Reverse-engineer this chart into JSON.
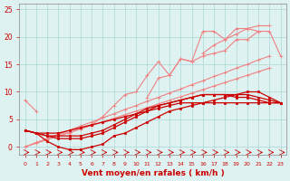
{
  "title": "",
  "xlabel": "Vent moyen/en rafales ( km/h )",
  "x": [
    0,
    1,
    2,
    3,
    4,
    5,
    6,
    7,
    8,
    9,
    10,
    11,
    12,
    13,
    14,
    15,
    16,
    17,
    18,
    19,
    20,
    21,
    22,
    23
  ],
  "line1_light": [
    8.5,
    6.5,
    null,
    null,
    null,
    null,
    null,
    null,
    null,
    null,
    null,
    null,
    null,
    null,
    null,
    null,
    null,
    null,
    null,
    null,
    null,
    null,
    null,
    null
  ],
  "line2_light": [
    null,
    null,
    null,
    null,
    null,
    null,
    null,
    null,
    null,
    null,
    null,
    9.0,
    12.5,
    13.0,
    16.0,
    15.5,
    16.5,
    17.0,
    17.5,
    19.5,
    19.5,
    21.0,
    21.0,
    16.5
  ],
  "line3_light": [
    null,
    null,
    null,
    null,
    null,
    null,
    null,
    null,
    null,
    null,
    null,
    null,
    null,
    null,
    null,
    null,
    21.0,
    21.0,
    null,
    null,
    null,
    null,
    null,
    null
  ],
  "line_up1": [
    null,
    null,
    null,
    null,
    null,
    null,
    null,
    null,
    null,
    null,
    10.0,
    13.0,
    null,
    null,
    null,
    null,
    null,
    null,
    null,
    null,
    null,
    null,
    null,
    null
  ],
  "big_light1": [
    null,
    null,
    null,
    2.5,
    2.5,
    3.5,
    4.0,
    5.5,
    7.5,
    9.5,
    10.0,
    13.0,
    15.5,
    13.0,
    16.0,
    15.5,
    21.0,
    21.0,
    19.5,
    21.5,
    21.5,
    21.0,
    null,
    null
  ],
  "big_light2": [
    null,
    null,
    2.5,
    2.0,
    2.0,
    2.5,
    3.5,
    5.0,
    7.0,
    9.0,
    10.0,
    null,
    null,
    null,
    null,
    null,
    null,
    null,
    null,
    null,
    null,
    null,
    null,
    null
  ],
  "big_light3": [
    null,
    null,
    null,
    null,
    null,
    null,
    null,
    null,
    null,
    null,
    null,
    null,
    null,
    null,
    null,
    null,
    17.0,
    18.5,
    19.5,
    20.5,
    21.5,
    22.0,
    22.0,
    null
  ],
  "line_straight1": [
    0.0,
    0.8,
    1.5,
    2.3,
    3.0,
    3.8,
    4.5,
    5.3,
    6.0,
    6.8,
    7.5,
    8.3,
    9.0,
    9.8,
    10.5,
    11.3,
    12.0,
    12.8,
    13.5,
    14.3,
    15.0,
    15.8,
    16.5,
    null
  ],
  "line_straight2": [
    0.0,
    0.65,
    1.3,
    2.0,
    2.6,
    3.25,
    3.9,
    4.55,
    5.2,
    5.85,
    6.5,
    7.15,
    7.8,
    8.45,
    9.1,
    9.75,
    10.4,
    11.05,
    11.7,
    12.35,
    13.0,
    13.65,
    14.3,
    null
  ],
  "dark_line1": [
    3.0,
    2.5,
    1.0,
    0.0,
    -0.5,
    -0.5,
    0.0,
    0.5,
    2.0,
    2.5,
    3.5,
    4.5,
    5.5,
    6.5,
    7.0,
    7.5,
    8.0,
    8.5,
    9.0,
    9.5,
    10.0,
    10.0,
    9.0,
    8.0
  ],
  "dark_line2": [
    3.0,
    2.5,
    2.0,
    1.5,
    1.5,
    1.5,
    2.0,
    2.5,
    3.5,
    4.5,
    5.5,
    6.5,
    7.5,
    8.0,
    8.5,
    9.0,
    9.5,
    9.5,
    9.5,
    9.5,
    9.5,
    9.0,
    8.5,
    8.0
  ],
  "dark_line3": [
    3.0,
    2.5,
    2.0,
    2.0,
    2.0,
    2.0,
    2.5,
    3.0,
    4.0,
    5.0,
    6.0,
    7.0,
    7.5,
    8.0,
    8.5,
    9.0,
    9.5,
    9.5,
    9.5,
    9.0,
    9.0,
    8.5,
    8.0,
    8.0
  ],
  "dark_line4": [
    3.0,
    2.5,
    2.5,
    2.5,
    3.0,
    3.5,
    4.0,
    4.5,
    5.0,
    5.5,
    6.0,
    6.5,
    7.0,
    7.5,
    8.0,
    8.0,
    8.0,
    8.0,
    8.0,
    8.0,
    8.0,
    8.0,
    8.0,
    8.0
  ],
  "bg_color": "#dff2f2",
  "grid_color": "#aad4d4",
  "light_red": "#f08080",
  "dark_red": "#cc0000",
  "arrow_color": "#cc0000",
  "ylim": [
    -1.5,
    26
  ],
  "xlim": [
    -0.5,
    23.5
  ],
  "yticks": [
    0,
    5,
    10,
    15,
    20,
    25
  ],
  "xlabel_color": "#cc0000",
  "tick_color": "#cc0000",
  "xlabel_fontsize": 6.5,
  "ytick_fontsize": 5.5,
  "xtick_fontsize": 4.5
}
